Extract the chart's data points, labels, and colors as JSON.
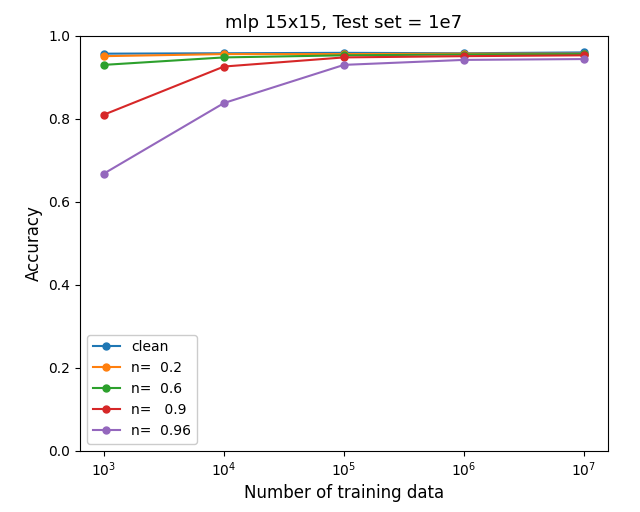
{
  "title": "mlp 15x15, Test set = 1e7",
  "xlabel": "Number of training data",
  "ylabel": "Accuracy",
  "x_values": [
    1000,
    10000,
    100000,
    1000000,
    10000000
  ],
  "series": [
    {
      "label": "clean",
      "color": "#1f77b4",
      "values": [
        0.957,
        0.958,
        0.959,
        0.958,
        0.96
      ]
    },
    {
      "label": "n=  0.2",
      "color": "#ff7f0e",
      "values": [
        0.951,
        0.956,
        0.956,
        0.957,
        0.957
      ]
    },
    {
      "label": "n=  0.6",
      "color": "#2ca02c",
      "values": [
        0.93,
        0.948,
        0.953,
        0.955,
        0.956
      ]
    },
    {
      "label": "n=   0.9",
      "color": "#d62728",
      "values": [
        0.81,
        0.926,
        0.948,
        0.951,
        0.953
      ]
    },
    {
      "label": "n=  0.96",
      "color": "#9467bd",
      "values": [
        0.668,
        0.838,
        0.93,
        0.942,
        0.944
      ]
    }
  ],
  "ylim": [
    0.0,
    1.0
  ],
  "yticks": [
    0.0,
    0.2,
    0.4,
    0.6,
    0.8,
    1.0
  ],
  "figsize": [
    6.4,
    5.12
  ],
  "dpi": 100,
  "legend_loc": "lower left",
  "legend_fontsize": 10
}
